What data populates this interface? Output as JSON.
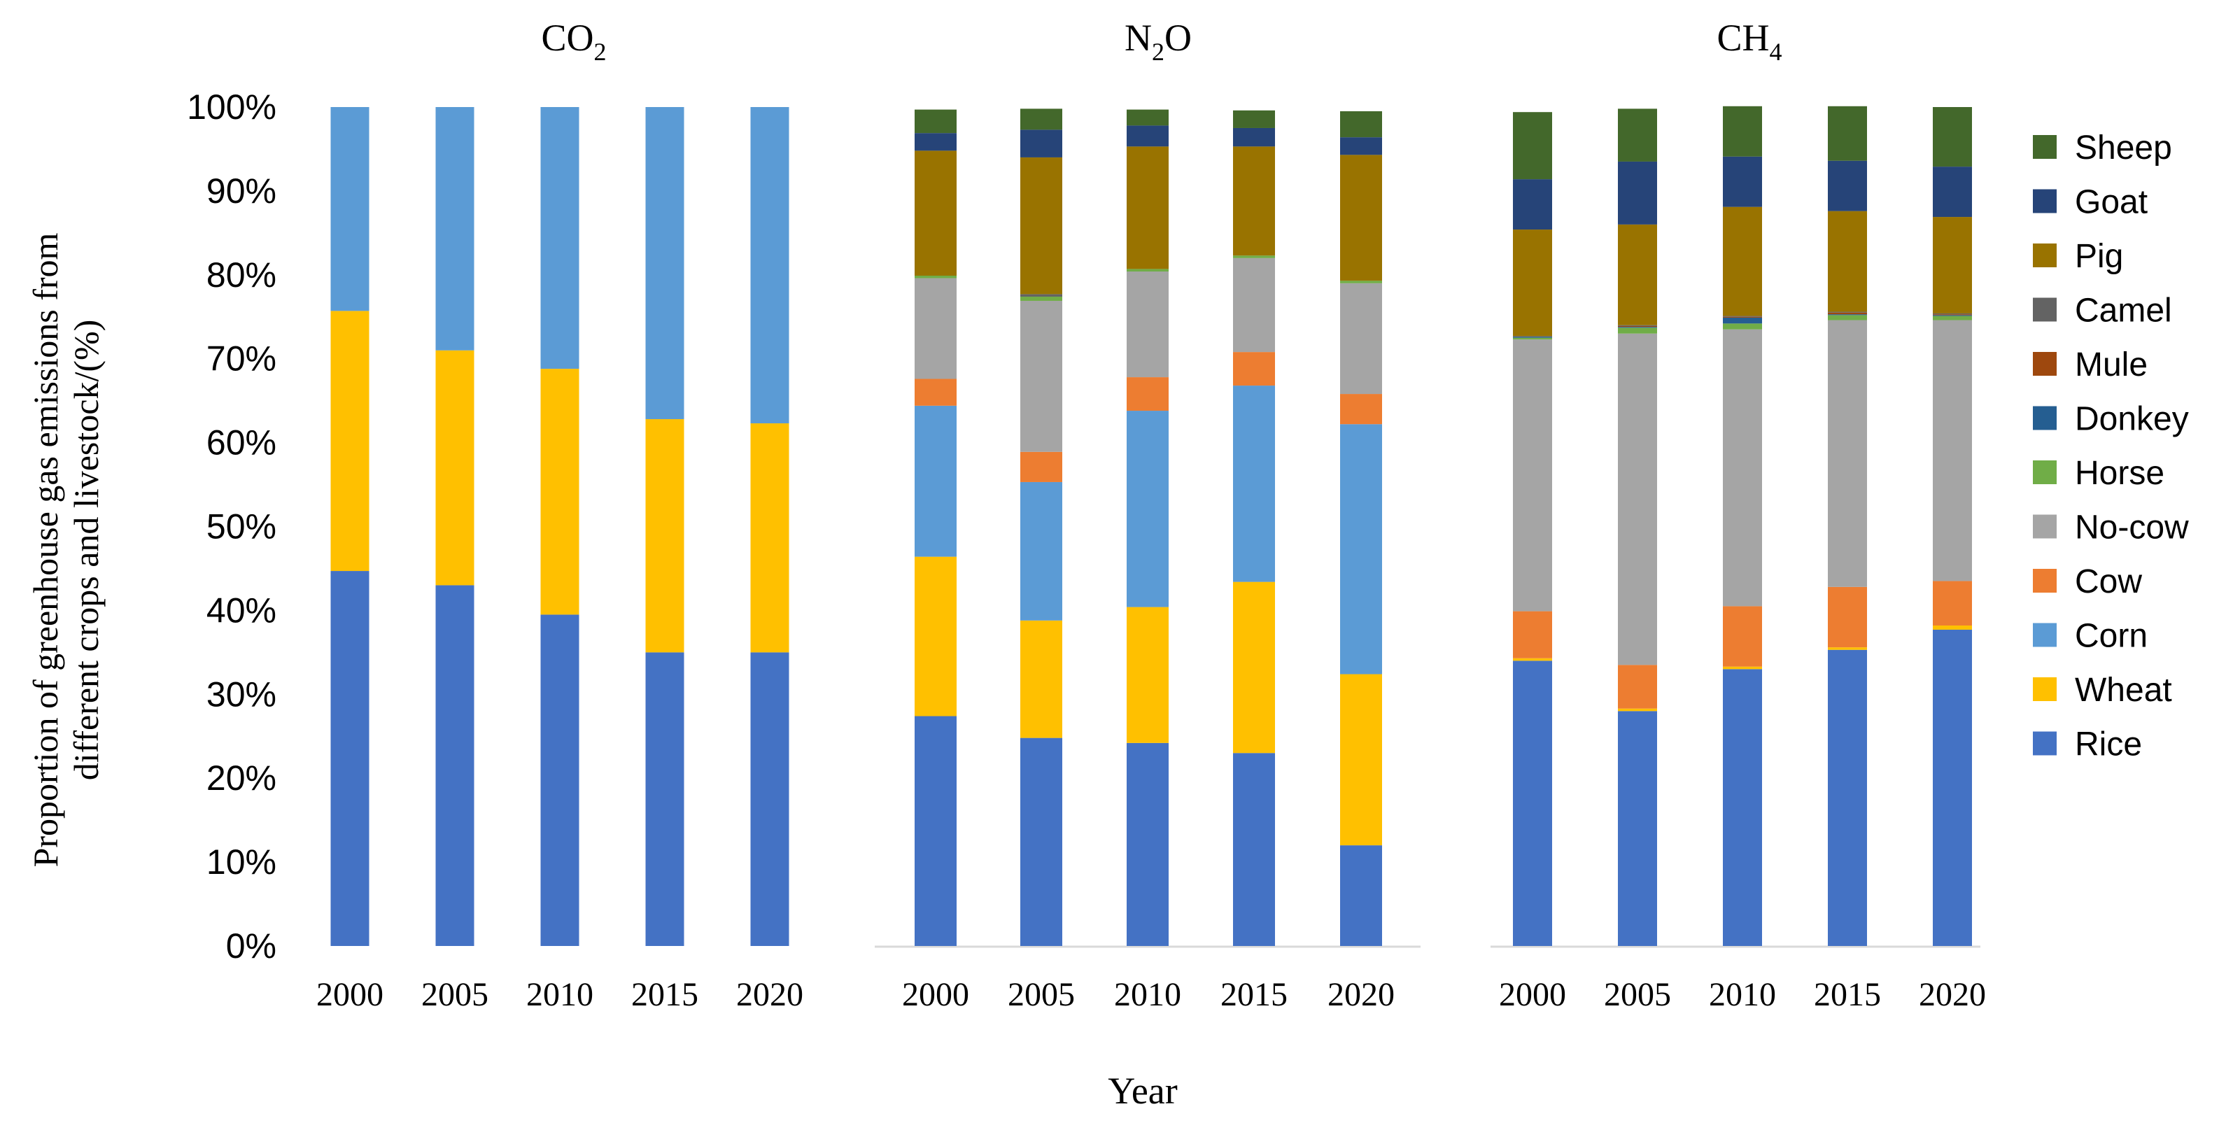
{
  "chart_data": {
    "type": "bar",
    "stacked": true,
    "percent": true,
    "ylabel": "Proportion of greenhouse gas emissions from different crops and livestock/(%)",
    "xlabel": "Year",
    "ylim": [
      0,
      100
    ],
    "yticks": [
      "0%",
      "10%",
      "20%",
      "30%",
      "40%",
      "50%",
      "60%",
      "70%",
      "80%",
      "90%",
      "100%"
    ],
    "categories": [
      "2000",
      "2005",
      "2010",
      "2015",
      "2020"
    ],
    "legend": {
      "placement": "right",
      "entries": [
        "Sheep",
        "Goat",
        "Pig",
        "Camel",
        "Mule",
        "Donkey",
        "Horse",
        "No-cow",
        "Cow",
        "Corn",
        "Wheat",
        "Rice"
      ]
    },
    "colors": {
      "Rice": "#4472C4",
      "Wheat": "#FFC000",
      "Corn": "#5B9BD5",
      "Cow": "#ED7D31",
      "No-cow": "#A5A5A5",
      "Horse": "#70AD47",
      "Donkey": "#255E91",
      "Mule": "#9E480E",
      "Camel": "#636363",
      "Pig": "#997300",
      "Goat": "#264478",
      "Sheep": "#43682B"
    },
    "panels": [
      {
        "title_main": "CO",
        "title_sub": "2",
        "series": [
          {
            "name": "Rice",
            "values": [
              44.7,
              43.0,
              39.5,
              35.0,
              35.0
            ]
          },
          {
            "name": "Wheat",
            "values": [
              31.0,
              28.0,
              29.3,
              27.8,
              27.3
            ]
          },
          {
            "name": "Corn",
            "values": [
              24.3,
              29.0,
              31.2,
              37.2,
              37.7
            ]
          }
        ]
      },
      {
        "title_main": "N",
        "title_sub": "2",
        "title_tail": "O",
        "series": [
          {
            "name": "Rice",
            "values": [
              27.4,
              24.8,
              24.2,
              23.0,
              12.0
            ]
          },
          {
            "name": "Wheat",
            "values": [
              19.0,
              14.0,
              16.2,
              20.4,
              20.4
            ]
          },
          {
            "name": "Corn",
            "values": [
              18.0,
              16.5,
              23.4,
              23.4,
              29.8
            ]
          },
          {
            "name": "Cow",
            "values": [
              3.2,
              3.6,
              4.0,
              4.0,
              3.6
            ]
          },
          {
            "name": "No-cow",
            "values": [
              12.0,
              18.0,
              12.6,
              11.2,
              13.2
            ]
          },
          {
            "name": "Horse",
            "values": [
              0.3,
              0.5,
              0.3,
              0.3,
              0.3
            ]
          },
          {
            "name": "Donkey",
            "values": [
              0.0,
              0.0,
              0.0,
              0.0,
              0.0
            ]
          },
          {
            "name": "Mule",
            "values": [
              0.0,
              0.0,
              0.0,
              0.0,
              0.0
            ]
          },
          {
            "name": "Camel",
            "values": [
              0.0,
              0.3,
              0.0,
              0.0,
              0.0
            ]
          },
          {
            "name": "Pig",
            "values": [
              14.9,
              16.3,
              14.6,
              13.0,
              15.0
            ]
          },
          {
            "name": "Goat",
            "values": [
              2.1,
              3.3,
              2.5,
              2.2,
              2.1
            ]
          },
          {
            "name": "Sheep",
            "values": [
              2.8,
              2.5,
              1.9,
              2.1,
              3.1
            ]
          }
        ]
      },
      {
        "title_main": "CH",
        "title_sub": "4",
        "series": [
          {
            "name": "Rice",
            "values": [
              34.0,
              28.0,
              33.0,
              35.3,
              37.7
            ]
          },
          {
            "name": "Wheat",
            "values": [
              0.3,
              0.3,
              0.3,
              0.3,
              0.5
            ]
          },
          {
            "name": "Corn",
            "values": [
              0.0,
              0.0,
              0.0,
              0.0,
              0.0
            ]
          },
          {
            "name": "Cow",
            "values": [
              5.6,
              5.2,
              7.2,
              7.2,
              5.3
            ]
          },
          {
            "name": "No-cow",
            "values": [
              32.4,
              39.5,
              33.0,
              31.8,
              31.1
            ]
          },
          {
            "name": "Horse",
            "values": [
              0.2,
              0.7,
              0.7,
              0.6,
              0.5
            ]
          },
          {
            "name": "Donkey",
            "values": [
              0.1,
              0.1,
              0.7,
              0.1,
              0.1
            ]
          },
          {
            "name": "Mule",
            "values": [
              0.0,
              0.1,
              0.1,
              0.2,
              0.1
            ]
          },
          {
            "name": "Camel",
            "values": [
              0.1,
              0.1,
              0.1,
              0.1,
              0.1
            ]
          },
          {
            "name": "Pig",
            "values": [
              12.7,
              12.0,
              13.0,
              12.0,
              11.5
            ]
          },
          {
            "name": "Goat",
            "values": [
              6.0,
              7.5,
              6.0,
              6.0,
              6.0
            ]
          },
          {
            "name": "Sheep",
            "values": [
              8.0,
              6.3,
              6.0,
              6.5,
              7.1
            ]
          }
        ]
      }
    ]
  }
}
